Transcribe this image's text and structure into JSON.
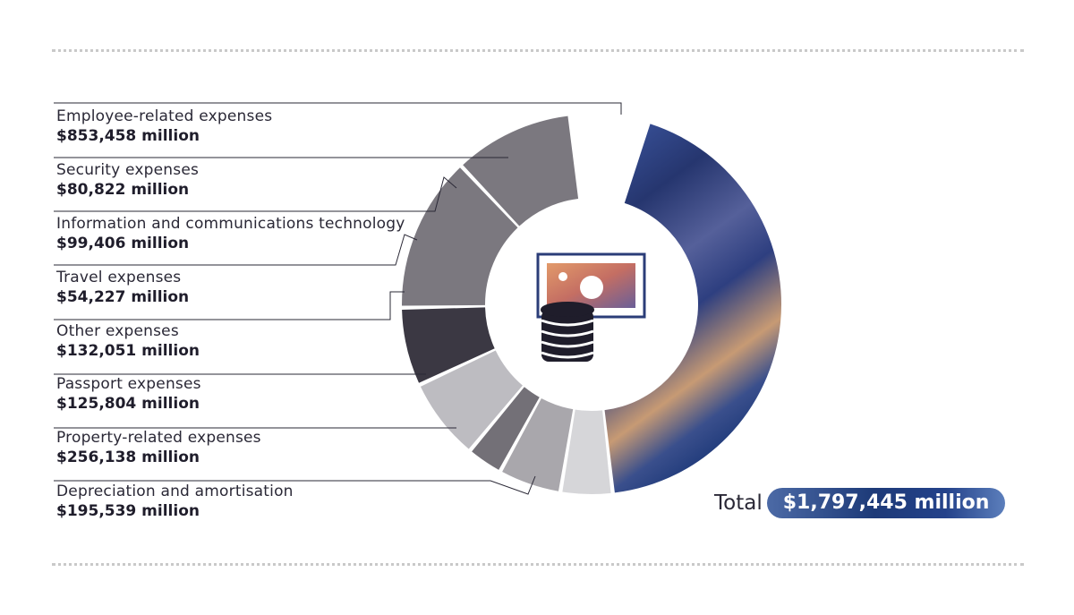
{
  "chart_data": {
    "type": "pie",
    "categories": [
      "Employee-related expenses",
      "Security expenses",
      "Information and communications technology",
      "Travel expenses",
      "Other expenses",
      "Passport expenses",
      "Property-related expenses",
      "Depreciation and amortisation"
    ],
    "values": [
      853458,
      80822,
      99406,
      54227,
      132051,
      125804,
      256138,
      195539
    ],
    "value_labels": [
      "$853,458 million",
      "$80,822 million",
      "$99,406 million",
      "$54,227 million",
      "$132,051 million",
      "$125,804 million",
      "$256,138 million",
      "$195,539 million"
    ],
    "total_word": "Total",
    "total_label": "$1,797,445 million",
    "colors": [
      "#2b3d78",
      "#d6d6d9",
      "#a9a7ac",
      "#737077",
      "#bdbcc1",
      "#3b3843",
      "#7b787f",
      "#7b787f"
    ]
  }
}
